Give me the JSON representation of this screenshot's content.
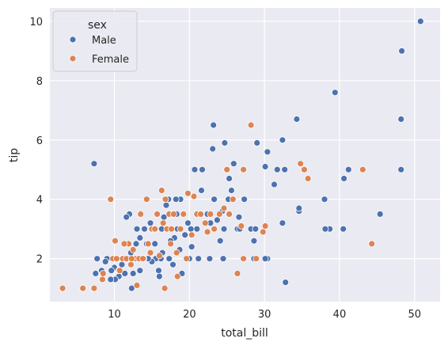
{
  "chart_data": {
    "type": "scatter",
    "title": "",
    "xlabel": "total_bill",
    "ylabel": "tip",
    "xlim": [
      1.4,
      53.4
    ],
    "ylim": [
      0.55,
      10.45
    ],
    "xticks": [
      10,
      20,
      30,
      40,
      50
    ],
    "yticks": [
      2,
      4,
      6,
      8,
      10
    ],
    "grid": true,
    "legend": {
      "title": "sex",
      "position": "top-left"
    },
    "colors": {
      "Male": "#4c72b0",
      "Female": "#dd8452",
      "background": "#eaeaf2",
      "grid": "#ffffff"
    },
    "series": [
      {
        "name": "Male",
        "points": [
          [
            50.8,
            10.0
          ],
          [
            48.3,
            9.0
          ],
          [
            48.2,
            6.7
          ],
          [
            48.2,
            5.0
          ],
          [
            45.4,
            3.5
          ],
          [
            44.3,
            2.5
          ],
          [
            41.2,
            5.0
          ],
          [
            40.6,
            4.7
          ],
          [
            40.5,
            3.0
          ],
          [
            38.7,
            3.0
          ],
          [
            38.0,
            4.0
          ],
          [
            38.1,
            3.0
          ],
          [
            39.4,
            7.6
          ],
          [
            34.3,
            6.7
          ],
          [
            34.6,
            3.6
          ],
          [
            34.6,
            3.7
          ],
          [
            32.4,
            6.0
          ],
          [
            32.7,
            5.0
          ],
          [
            32.8,
            1.2
          ],
          [
            31.7,
            5.0
          ],
          [
            31.3,
            4.5
          ],
          [
            32.4,
            3.2
          ],
          [
            30.4,
            5.6
          ],
          [
            30.1,
            5.1
          ],
          [
            30.4,
            2.0
          ],
          [
            30.1,
            2.0
          ],
          [
            29.0,
            5.9
          ],
          [
            28.2,
            3.0
          ],
          [
            28.6,
            2.6
          ],
          [
            28.8,
            3.0
          ],
          [
            28.6,
            2.0
          ],
          [
            27.3,
            4.0
          ],
          [
            26.6,
            3.4
          ],
          [
            26.4,
            3.0
          ],
          [
            25.9,
            5.2
          ],
          [
            25.3,
            4.7
          ],
          [
            25.6,
            4.3
          ],
          [
            25.2,
            4.0
          ],
          [
            24.7,
            5.9
          ],
          [
            24.4,
            3.6
          ],
          [
            24.6,
            3.0
          ],
          [
            24.1,
            2.6
          ],
          [
            24.5,
            2.0
          ],
          [
            23.7,
            3.3
          ],
          [
            23.2,
            6.5
          ],
          [
            23.1,
            5.7
          ],
          [
            23.3,
            4.0
          ],
          [
            22.8,
            3.2
          ],
          [
            22.7,
            2.0
          ],
          [
            22.4,
            3.5
          ],
          [
            21.7,
            5.0
          ],
          [
            21.6,
            4.3
          ],
          [
            21.5,
            3.5
          ],
          [
            21.0,
            3.0
          ],
          [
            21.2,
            2.0
          ],
          [
            20.7,
            5.0
          ],
          [
            20.5,
            4.1
          ],
          [
            20.2,
            3.0
          ],
          [
            20.3,
            2.4
          ],
          [
            20.0,
            2.0
          ],
          [
            19.8,
            3.2
          ],
          [
            19.4,
            2.8
          ],
          [
            18.8,
            4.0
          ],
          [
            18.7,
            2.3
          ],
          [
            18.4,
            3.0
          ],
          [
            18.2,
            4.0
          ],
          [
            18.0,
            2.7
          ],
          [
            17.8,
            3.5
          ],
          [
            17.5,
            2.6
          ],
          [
            17.3,
            2.0
          ],
          [
            17.8,
            1.8
          ],
          [
            17.2,
            4.0
          ],
          [
            16.9,
            3.8
          ],
          [
            16.6,
            3.4
          ],
          [
            16.4,
            2.2
          ],
          [
            16.3,
            3.0
          ],
          [
            16.2,
            2.0
          ],
          [
            15.9,
            1.6
          ],
          [
            15.5,
            2.0
          ],
          [
            15.1,
            3.0
          ],
          [
            15.4,
            2.5
          ],
          [
            15.0,
            1.9
          ],
          [
            14.8,
            3.2
          ],
          [
            14.5,
            2.0
          ],
          [
            14.3,
            2.5
          ],
          [
            14.0,
            3.0
          ],
          [
            13.5,
            2.0
          ],
          [
            13.4,
            2.7
          ],
          [
            13.0,
            3.0
          ],
          [
            13.4,
            1.6
          ],
          [
            12.9,
            2.5
          ],
          [
            12.7,
            2.0
          ],
          [
            12.5,
            1.5
          ],
          [
            12.3,
            1.0
          ],
          [
            12.0,
            3.5
          ],
          [
            11.6,
            3.4
          ],
          [
            11.4,
            1.5
          ],
          [
            11.0,
            2.0
          ],
          [
            11.0,
            1.8
          ],
          [
            10.6,
            1.4
          ],
          [
            10.3,
            2.0
          ],
          [
            10.1,
            1.3
          ],
          [
            10.0,
            1.7
          ],
          [
            9.6,
            1.6
          ],
          [
            9.5,
            1.3
          ],
          [
            9.0,
            2.0
          ],
          [
            8.8,
            1.9
          ],
          [
            8.5,
            1.5
          ],
          [
            8.3,
            1.6
          ],
          [
            7.7,
            2.0
          ],
          [
            7.5,
            1.5
          ],
          [
            7.3,
            5.2
          ],
          [
            13.6,
            2.0
          ],
          [
            16.0,
            1.4
          ],
          [
            19.0,
            1.5
          ],
          [
            26.7,
            3.0
          ],
          [
            18.3,
            3.5
          ],
          [
            12.2,
            2.2
          ]
        ]
      },
      {
        "name": "Female",
        "points": [
          [
            3.1,
            1.0
          ],
          [
            5.8,
            1.0
          ],
          [
            7.3,
            1.0
          ],
          [
            8.4,
            1.3
          ],
          [
            8.5,
            1.5
          ],
          [
            9.5,
            4.0
          ],
          [
            9.8,
            2.0
          ],
          [
            10.1,
            2.6
          ],
          [
            10.3,
            2.0
          ],
          [
            10.6,
            1.6
          ],
          [
            11.1,
            2.0
          ],
          [
            11.6,
            2.0
          ],
          [
            11.9,
            2.5
          ],
          [
            12.2,
            1.8
          ],
          [
            12.5,
            2.3
          ],
          [
            12.8,
            2.0
          ],
          [
            13.0,
            1.1
          ],
          [
            13.3,
            2.0
          ],
          [
            13.5,
            3.5
          ],
          [
            13.9,
            2.0
          ],
          [
            14.3,
            4.0
          ],
          [
            14.5,
            2.5
          ],
          [
            14.8,
            2.2
          ],
          [
            15.0,
            3.0
          ],
          [
            15.4,
            3.0
          ],
          [
            15.7,
            3.5
          ],
          [
            16.0,
            2.1
          ],
          [
            16.3,
            4.3
          ],
          [
            16.5,
            3.2
          ],
          [
            16.8,
            4.0
          ],
          [
            17.0,
            3.0
          ],
          [
            17.3,
            3.5
          ],
          [
            17.5,
            2.5
          ],
          [
            17.9,
            3.5
          ],
          [
            18.3,
            2.2
          ],
          [
            18.4,
            1.4
          ],
          [
            18.8,
            3.0
          ],
          [
            19.2,
            3.5
          ],
          [
            19.8,
            4.2
          ],
          [
            20.3,
            2.8
          ],
          [
            20.6,
            4.1
          ],
          [
            21.0,
            3.5
          ],
          [
            21.5,
            3.5
          ],
          [
            22.1,
            3.2
          ],
          [
            22.4,
            2.9
          ],
          [
            22.8,
            3.5
          ],
          [
            23.3,
            3.0
          ],
          [
            24.0,
            3.5
          ],
          [
            24.6,
            3.7
          ],
          [
            25.0,
            5.0
          ],
          [
            25.3,
            3.5
          ],
          [
            25.8,
            4.0
          ],
          [
            26.4,
            1.5
          ],
          [
            26.9,
            3.1
          ],
          [
            27.2,
            5.0
          ],
          [
            27.2,
            2.0
          ],
          [
            28.2,
            6.5
          ],
          [
            28.9,
            2.0
          ],
          [
            29.8,
            2.9
          ],
          [
            30.1,
            3.1
          ],
          [
            34.8,
            5.2
          ],
          [
            35.3,
            5.0
          ],
          [
            35.8,
            4.7
          ],
          [
            43.1,
            5.0
          ],
          [
            44.3,
            2.5
          ],
          [
            16.7,
            1.0
          ],
          [
            19.6,
            2.0
          ],
          [
            13.8,
            2.0
          ],
          [
            12.3,
            2.0
          ],
          [
            17.6,
            3.0
          ],
          [
            11.3,
            2.5
          ],
          [
            10.7,
            1.6
          ]
        ]
      }
    ]
  }
}
